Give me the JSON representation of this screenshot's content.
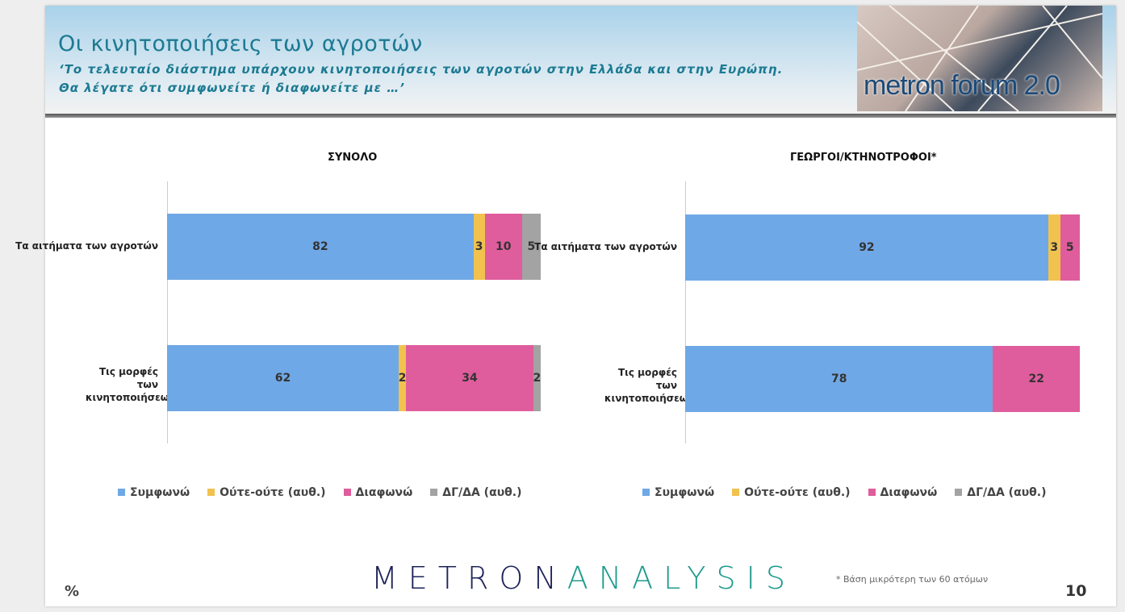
{
  "header": {
    "title": "Οι κινητοποιήσεις των αγροτών",
    "subtitle_1": "‘Το τελευταίο διάστημα υπάρχουν κινητοποιήσεις των αγροτών στην Ελλάδα και στην Ευρώπη.",
    "subtitle_2": "Θα λέγατε ότι συμφωνείτε ή διαφωνείτε με …’",
    "logo_text": "metron forum 2.0"
  },
  "colors": {
    "Συμφωνώ": "#6fa8e6",
    "Ούτε-ούτε (αυθ.)": "#f1c24e",
    "Διαφωνώ": "#df5d9c",
    "ΔΓ/ΔΑ (αυθ.)": "#a3a3a3"
  },
  "chart_data": [
    {
      "type": "bar",
      "stacked": true,
      "orientation": "horizontal",
      "title": "ΣΥΝΟΛΟ",
      "categories": [
        "Τα αιτήματα των αγροτών",
        "Τις μορφές των κινητοποιήσεων"
      ],
      "series": [
        {
          "name": "Συμφωνώ",
          "values": [
            82,
            62
          ]
        },
        {
          "name": "Ούτε-ούτε (αυθ.)",
          "values": [
            3,
            2
          ]
        },
        {
          "name": "Διαφωνώ",
          "values": [
            10,
            34
          ]
        },
        {
          "name": "ΔΓ/ΔΑ (αυθ.)",
          "values": [
            5,
            2
          ]
        }
      ],
      "xlim": [
        0,
        100
      ],
      "legend": "bottom"
    },
    {
      "type": "bar",
      "stacked": true,
      "orientation": "horizontal",
      "title": "ΓΕΩΡΓΟΙ/ΚΤΗΝΟΤΡΟΦΟΙ*",
      "categories": [
        "Τα αιτήματα των αγροτών",
        "Τις μορφές των κινητοποιήσεων"
      ],
      "series": [
        {
          "name": "Συμφωνώ",
          "values": [
            92,
            78
          ]
        },
        {
          "name": "Ούτε-ούτε (αυθ.)",
          "values": [
            3,
            0
          ]
        },
        {
          "name": "Διαφωνώ",
          "values": [
            5,
            22
          ]
        },
        {
          "name": "ΔΓ/ΔΑ (αυθ.)",
          "values": [
            0,
            0
          ]
        }
      ],
      "xlim": [
        0,
        100
      ],
      "legend": "bottom"
    }
  ],
  "footer": {
    "brand_1": "METRON",
    "brand_2": "ANALYSIS",
    "note": "*  Βάση μικρότερη των 60 ατόμων",
    "percent": "%",
    "page": "10"
  }
}
